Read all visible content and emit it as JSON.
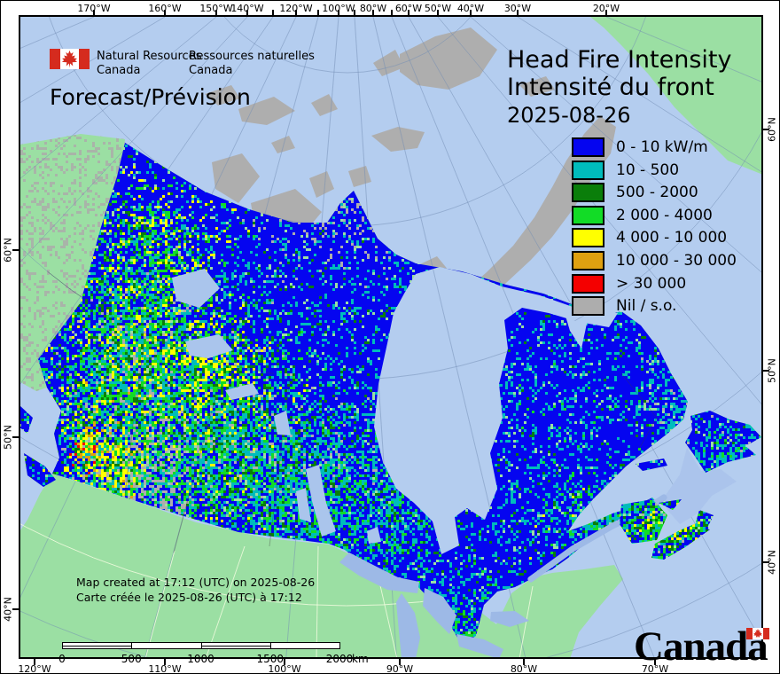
{
  "header": {
    "dept_en_line1": "Natural Resources",
    "dept_en_line2": "Canada",
    "dept_fr_line1": "Ressources naturelles",
    "dept_fr_line2": "Canada",
    "forecast_label": "Forecast/Prévision"
  },
  "title": {
    "en": "Head Fire Intensity",
    "fr": "Intensité du front",
    "date": "2025-08-26"
  },
  "legend": {
    "items": [
      {
        "label": "0 - 10 kW/m",
        "color": "#0505f0"
      },
      {
        "label": "10 - 500",
        "color": "#00bcbc"
      },
      {
        "label": "500 - 2000",
        "color": "#0a7e0a"
      },
      {
        "label": "2 000 - 4000",
        "color": "#12dc26"
      },
      {
        "label": "4 000 - 10 000",
        "color": "#ffff00"
      },
      {
        "label": "10 000 - 30 000",
        "color": "#dfa010"
      },
      {
        "label": "> 30 000",
        "color": "#f40000"
      },
      {
        "label": "Nil / s.o.",
        "color": "#adadad"
      }
    ]
  },
  "annotations": {
    "created_en": "Map created at 17:12 (UTC) on 2025-08-26",
    "created_fr": "Carte créée le 2025-08-26 (UTC) à 17:12"
  },
  "scalebar": {
    "labels": [
      "0",
      "500",
      "1000",
      "1500",
      "2000"
    ],
    "unit": "km"
  },
  "axes": {
    "top": [
      "170°W",
      "160°W",
      "150°W",
      "140°W",
      "120°W",
      "100°W",
      "80°W",
      "60°W",
      "50°W",
      "40°W",
      "30°W",
      "20°W"
    ],
    "bottom": [
      "120°W",
      "110°W",
      "100°W",
      "90°W",
      "80°W",
      "70°W"
    ],
    "left": [
      "60°N",
      "50°N",
      "40°N"
    ],
    "right": [
      "60°N",
      "50°N",
      "40°N"
    ]
  },
  "wordmark": {
    "text": "Canada"
  },
  "map_colors": {
    "ocean": "#b4cdef",
    "lake": "#9db9e6",
    "foreign_land": "#9bdfa3",
    "nonfuel_gray": "#aeaeae",
    "graticule": "rgba(115,140,180,0.55)"
  }
}
